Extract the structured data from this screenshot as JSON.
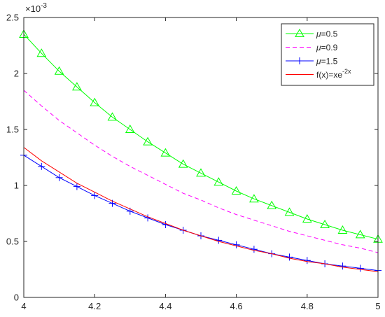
{
  "chart_data": {
    "type": "line",
    "title": "",
    "xlabel": "",
    "ylabel": "",
    "xlim": [
      4,
      5
    ],
    "ylim": [
      0,
      0.0025
    ],
    "x_ticks": [
      "4",
      "4.2",
      "4.4",
      "4.6",
      "4.8",
      "5"
    ],
    "y_ticks": [
      "0",
      "0.5",
      "1",
      "1.5",
      "2",
      "2.5"
    ],
    "y_exponent_label": "×10",
    "y_exponent_power": "-3",
    "grid": false,
    "legend_position": "top-right",
    "x": [
      4.0,
      4.05,
      4.1,
      4.15,
      4.2,
      4.25,
      4.3,
      4.35,
      4.4,
      4.45,
      4.5,
      4.55,
      4.6,
      4.65,
      4.7,
      4.75,
      4.8,
      4.85,
      4.9,
      4.95,
      5.0
    ],
    "series": [
      {
        "name": "μ=0.5",
        "name_parts": [
          "μ",
          "=0.5"
        ],
        "color": "#00ff00",
        "line_style": "solid",
        "marker": "triangle",
        "values": [
          0.00235,
          0.00218,
          0.00202,
          0.00188,
          0.00174,
          0.00161,
          0.0015,
          0.00139,
          0.00129,
          0.00119,
          0.00111,
          0.00103,
          0.00095,
          0.00088,
          0.00082,
          0.00076,
          0.0007,
          0.00065,
          0.0006,
          0.00056,
          0.00052
        ]
      },
      {
        "name": "μ=0.9",
        "name_parts": [
          "μ",
          "=0.9"
        ],
        "color": "#ff00ff",
        "line_style": "dashed",
        "marker": "none",
        "values": [
          0.00185,
          0.00171,
          0.00158,
          0.00147,
          0.00136,
          0.00126,
          0.00117,
          0.00109,
          0.00101,
          0.00093,
          0.00087,
          0.0008,
          0.00074,
          0.00069,
          0.00064,
          0.00059,
          0.00055,
          0.00051,
          0.00047,
          0.00044,
          0.0004
        ]
      },
      {
        "name": "μ=1.5",
        "name_parts": [
          "μ",
          "=1.5"
        ],
        "color": "#0000ff",
        "line_style": "solid",
        "marker": "plus",
        "values": [
          0.00127,
          0.00117,
          0.00107,
          0.00099,
          0.00091,
          0.00084,
          0.00077,
          0.00071,
          0.00065,
          0.0006,
          0.00055,
          0.00051,
          0.00047,
          0.00043,
          0.00039,
          0.00036,
          0.00033,
          0.0003,
          0.00028,
          0.00026,
          0.00024
        ]
      },
      {
        "name": "f(x)=xe^(-2x)",
        "name_parts": [
          "f(x)=xe",
          "-2x"
        ],
        "color": "#ff0000",
        "line_style": "solid",
        "marker": "none",
        "values": [
          0.00134,
          0.00122,
          0.00112,
          0.00102,
          0.00094,
          0.00086,
          0.00079,
          0.00072,
          0.00066,
          0.0006,
          0.00055,
          0.0005,
          0.00046,
          0.00042,
          0.00039,
          0.00035,
          0.00032,
          0.0003,
          0.00027,
          0.00025,
          0.00023
        ]
      }
    ]
  }
}
